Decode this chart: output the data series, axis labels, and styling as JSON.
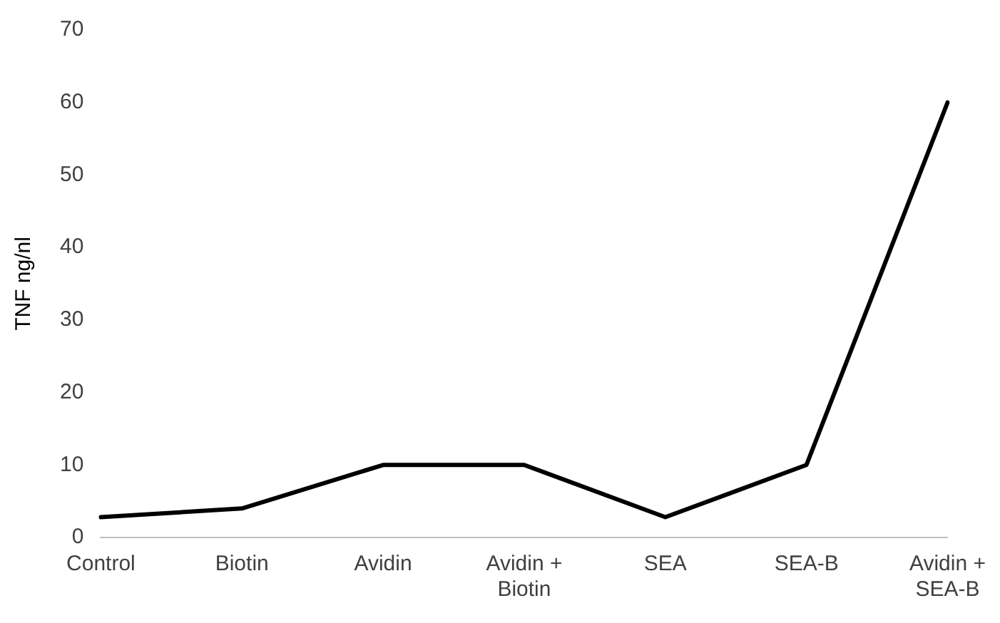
{
  "chart_data": {
    "type": "line",
    "ylabel": "TNF ng/nl",
    "categories": [
      "Control",
      "Biotin",
      "Avidin",
      "Avidin + Biotin",
      "SEA",
      "SEA-B",
      "Avidin + SEA-B"
    ],
    "series": [
      {
        "color": "#000000",
        "values": [
          2.8,
          4,
          10,
          10,
          2.8,
          10,
          60
        ]
      }
    ],
    "ylim": [
      0,
      70
    ],
    "yticks": [
      0,
      10,
      20,
      30,
      40,
      50,
      60,
      70
    ],
    "grid": false,
    "legend": false,
    "marker": "none",
    "line_style": "solid"
  }
}
